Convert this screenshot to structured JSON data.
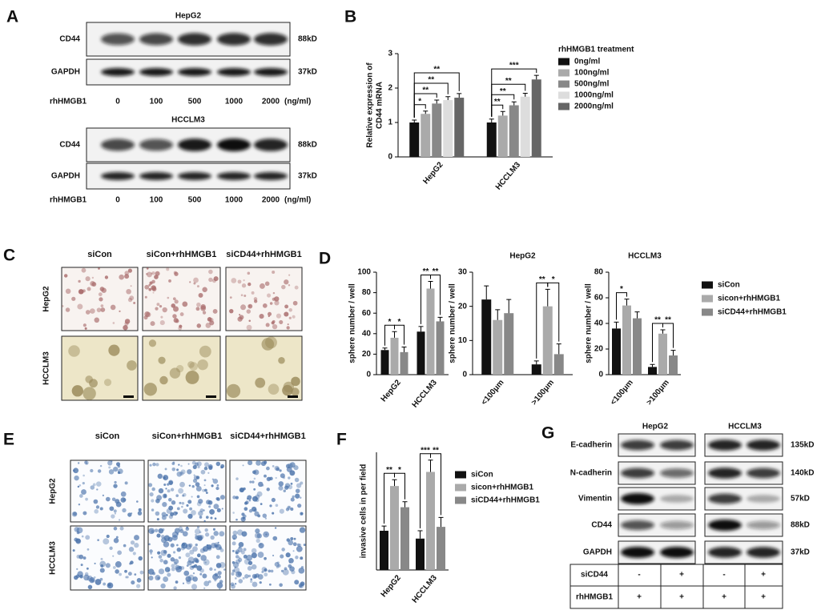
{
  "panel_labels": [
    "A",
    "B",
    "C",
    "D",
    "E",
    "F",
    "G"
  ],
  "blot_a": [
    {
      "title": "HepG2",
      "rows": [
        {
          "label": "CD44",
          "size": "88kD"
        },
        {
          "label": "GAPDH",
          "size": "37kD"
        }
      ],
      "treatment": "rhHMGB1",
      "doses": [
        "0",
        "100",
        "500",
        "1000",
        "2000"
      ],
      "unit": "(ng/ml)"
    },
    {
      "title": "HCCLM3",
      "rows": [
        {
          "label": "CD44",
          "size": "88kD"
        },
        {
          "label": "GAPDH",
          "size": "37kD"
        }
      ],
      "treatment": "rhHMGB1",
      "doses": [
        "0",
        "100",
        "500",
        "1000",
        "2000"
      ],
      "unit": "(ng/ml)"
    }
  ],
  "images_c": {
    "columns": [
      "siCon",
      "siCon+rhHMGB1",
      "siCD44+rhHMGB1"
    ],
    "rows": [
      "HepG2",
      "HCCLM3"
    ]
  },
  "images_e": {
    "columns": [
      "siCon",
      "siCon+rhHMGB1",
      "siCD44+rhHMGB1"
    ],
    "rows": [
      "HepG2",
      "HCCLM3"
    ]
  },
  "blot_g": {
    "columns": [
      "HepG2",
      "HCCLM3"
    ],
    "rows": [
      {
        "label": "E-cadherin",
        "size": "135kD"
      },
      {
        "label": "N-cadherin",
        "size": "140kD"
      },
      {
        "label": "Vimentin",
        "size": "57kD"
      },
      {
        "label": "CD44",
        "size": "88kD"
      },
      {
        "label": "GAPDH",
        "size": "37kD"
      }
    ],
    "table": [
      {
        "label": "siCD44",
        "values": [
          "-",
          "+",
          "-",
          "+"
        ]
      },
      {
        "label": "rhHMGB1",
        "values": [
          "+",
          "+",
          "+",
          "+"
        ]
      }
    ]
  },
  "chart_data": [
    {
      "type": "bar",
      "ylabel": [
        "Relative expression of",
        "CD44 mRNA"
      ],
      "categories": [
        "HepG2",
        "HCCLM3"
      ],
      "ylim": [
        0,
        3
      ],
      "yticks": [
        0,
        1,
        2,
        3
      ],
      "legend": "right",
      "legend_title": "rhHMGB1 treatment",
      "series": [
        {
          "name": "0ng/ml",
          "color": "#111111",
          "values": [
            1.0,
            1.0
          ],
          "errors": [
            0.07,
            0.1
          ]
        },
        {
          "name": "100ng/ml",
          "color": "#aaaaaa",
          "values": [
            1.25,
            1.2
          ],
          "errors": [
            0.08,
            0.12
          ]
        },
        {
          "name": "500ng/ml",
          "color": "#888888",
          "values": [
            1.55,
            1.5
          ],
          "errors": [
            0.1,
            0.1
          ]
        },
        {
          "name": "1000ng/ml",
          "color": "#dddddd",
          "values": [
            1.65,
            1.75
          ],
          "errors": [
            0.1,
            0.1
          ]
        },
        {
          "name": "2000ng/ml",
          "color": "#666666",
          "values": [
            1.72,
            2.25
          ],
          "errors": [
            0.12,
            0.12
          ]
        }
      ],
      "significance": [
        [
          {
            "pair": [
              0,
              1
            ],
            "label": "*"
          },
          {
            "pair": [
              0,
              2
            ],
            "label": "**"
          },
          {
            "pair": [
              0,
              3
            ],
            "label": "**"
          },
          {
            "pair": [
              0,
              4
            ],
            "label": "**"
          }
        ],
        [
          {
            "pair": [
              0,
              1
            ],
            "label": "**"
          },
          {
            "pair": [
              0,
              2
            ],
            "label": "**"
          },
          {
            "pair": [
              0,
              3
            ],
            "label": "**"
          },
          {
            "pair": [
              0,
              4
            ],
            "label": "***"
          }
        ]
      ]
    },
    {
      "type": "bar",
      "ylabel": "sphere number / well",
      "categories": [
        "HepG2",
        "HCCLM3"
      ],
      "ylim": [
        0,
        100
      ],
      "yticks": [
        0,
        20,
        40,
        60,
        80,
        100
      ],
      "series": [
        {
          "color": "#111111",
          "values": [
            24,
            42
          ],
          "errors": [
            2,
            5
          ]
        },
        {
          "color": "#aaaaaa",
          "values": [
            36,
            84
          ],
          "errors": [
            6,
            7
          ]
        },
        {
          "color": "#888888",
          "values": [
            22,
            52
          ],
          "errors": [
            5,
            4
          ]
        }
      ],
      "significance": [
        [
          {
            "pair": [
              0,
              1
            ],
            "label": "*"
          },
          {
            "pair": [
              1,
              2
            ],
            "label": "*"
          }
        ],
        [
          {
            "pair": [
              0,
              1
            ],
            "label": "**"
          },
          {
            "pair": [
              1,
              2
            ],
            "label": "**"
          }
        ]
      ]
    },
    {
      "type": "bar",
      "title": "HepG2",
      "ylabel": "sphere number / well",
      "categories": [
        "<100μm",
        ">100μm"
      ],
      "ylim": [
        0,
        30
      ],
      "yticks": [
        0,
        10,
        20,
        30
      ],
      "series": [
        {
          "color": "#111111",
          "values": [
            22,
            3
          ],
          "errors": [
            4,
            1
          ]
        },
        {
          "color": "#aaaaaa",
          "values": [
            16,
            20
          ],
          "errors": [
            3,
            5
          ]
        },
        {
          "color": "#888888",
          "values": [
            18,
            6
          ],
          "errors": [
            4,
            3
          ]
        }
      ],
      "significance": [
        [],
        [
          {
            "pair": [
              0,
              1
            ],
            "label": "**"
          },
          {
            "pair": [
              1,
              2
            ],
            "label": "*"
          }
        ]
      ]
    },
    {
      "type": "bar",
      "title": "HCCLM3",
      "ylabel": "sphere number / well",
      "categories": [
        "<100μm",
        ">100μm"
      ],
      "ylim": [
        0,
        80
      ],
      "yticks": [
        0,
        20,
        40,
        60,
        80
      ],
      "legend": "right",
      "series": [
        {
          "name": "siCon",
          "color": "#111111",
          "values": [
            36,
            6
          ],
          "errors": [
            5,
            2
          ]
        },
        {
          "name": "sicon+rhHMGB1",
          "color": "#aaaaaa",
          "values": [
            54,
            32
          ],
          "errors": [
            5,
            3
          ]
        },
        {
          "name": "siCD44+rhHMGB1",
          "color": "#888888",
          "values": [
            44,
            15
          ],
          "errors": [
            5,
            4
          ]
        }
      ],
      "significance": [
        [
          {
            "pair": [
              0,
              1
            ],
            "label": "*"
          }
        ],
        [
          {
            "pair": [
              0,
              1
            ],
            "label": "**"
          },
          {
            "pair": [
              1,
              2
            ],
            "label": "**"
          }
        ]
      ]
    },
    {
      "type": "bar",
      "ylabel": "invasive cells in per field",
      "categories": [
        "HepG2",
        "HCCLM3"
      ],
      "ylim": [
        0,
        150
      ],
      "legend": "right",
      "series": [
        {
          "name": "siCon",
          "color": "#111111",
          "values": [
            50,
            40
          ],
          "errors": [
            6,
            10
          ]
        },
        {
          "name": "sicon+rhHMGB1",
          "color": "#aaaaaa",
          "values": [
            107,
            125
          ],
          "errors": [
            8,
            15
          ]
        },
        {
          "name": "siCD44+rhHMGB1",
          "color": "#888888",
          "values": [
            80,
            55
          ],
          "errors": [
            7,
            12
          ]
        }
      ],
      "significance": [
        [
          {
            "pair": [
              0,
              1
            ],
            "label": "**"
          },
          {
            "pair": [
              1,
              2
            ],
            "label": "*"
          }
        ],
        [
          {
            "pair": [
              0,
              1
            ],
            "label": "***"
          },
          {
            "pair": [
              1,
              2
            ],
            "label": "**"
          }
        ]
      ]
    }
  ]
}
